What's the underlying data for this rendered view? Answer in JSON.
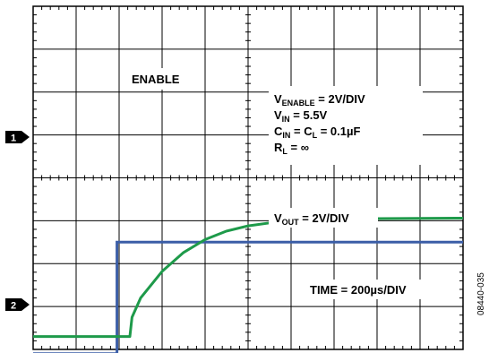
{
  "chart_data": {
    "type": "line",
    "title": "",
    "xlabel": "",
    "ylabel": "",
    "grid": true,
    "x_divisions": 10,
    "y_divisions": 8,
    "colors": {
      "enable": "#3b5ea7",
      "vout": "#1e9a4a",
      "grid": "#000000"
    },
    "series": [
      {
        "name": "ENABLE",
        "channel_marker": "1",
        "x": [
          0,
          1.95,
          1.95,
          10
        ],
        "y": [
          -0.1,
          -0.1,
          2.5,
          2.5
        ]
      },
      {
        "name": "VOUT",
        "channel_marker": "2",
        "x": [
          0,
          2.25,
          2.3,
          2.5,
          3.0,
          3.5,
          4.0,
          4.5,
          5.0,
          5.5,
          6.0,
          7.0,
          8.0,
          10.0
        ],
        "y": [
          0.3,
          0.3,
          0.75,
          1.2,
          1.82,
          2.26,
          2.56,
          2.76,
          2.88,
          2.95,
          2.99,
          3.03,
          3.05,
          3.06
        ]
      }
    ],
    "annotations": {
      "enable_label": "ENABLE",
      "v_enable": {
        "main": "V",
        "sub": "ENABLE",
        "rest": " = 2V/DIV"
      },
      "v_in": {
        "main": "V",
        "sub": "IN",
        "rest": " = 5.5V"
      },
      "c_line": {
        "a": "C",
        "a_sub": "IN",
        "mid": " = C",
        "b_sub": "L",
        "rest": " = 0.1µF"
      },
      "r_line": {
        "main": "R",
        "sub": "L",
        "rest": " = ∞"
      },
      "v_out": {
        "main": "V",
        "sub": "OUT",
        "rest": " = 2V/DIV"
      },
      "time": "TIME = 200µs/DIV",
      "figure_id": "08440-035"
    }
  }
}
